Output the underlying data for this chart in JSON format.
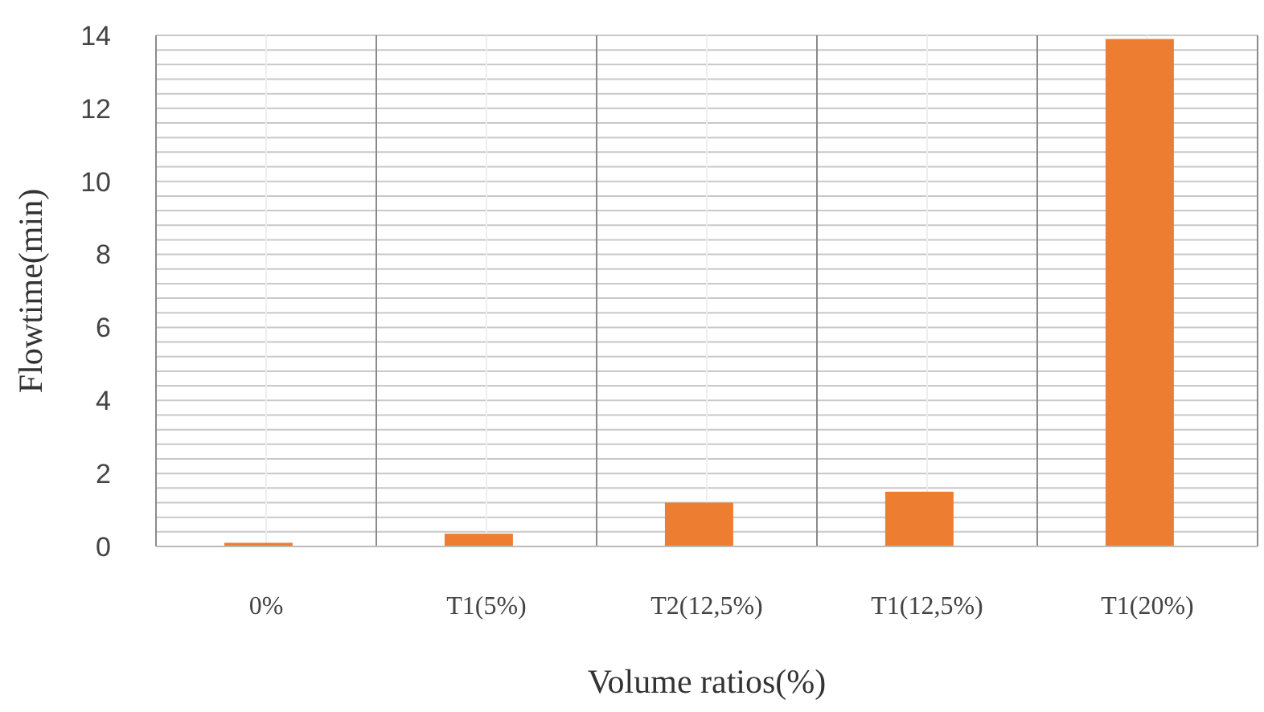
{
  "chart_data": {
    "type": "bar",
    "xlabel": "Volume ratios(%)",
    "ylabel": "Flowtime(min)",
    "categories": [
      "0%",
      "T1(5%)",
      "T2(12,5%)",
      "T1(12,5%)",
      "T1(20%)"
    ],
    "values": [
      0.1,
      0.35,
      1.2,
      1.5,
      13.9
    ],
    "color": "#ed7d31",
    "ylim": [
      0,
      14
    ],
    "yticks": [
      0,
      2,
      4,
      6,
      8,
      10,
      12,
      14
    ],
    "grid": true
  }
}
